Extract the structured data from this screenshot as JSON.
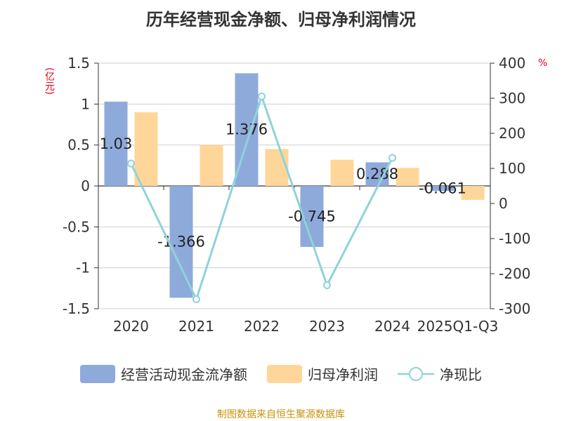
{
  "chart_data": {
    "type": "bar",
    "title": "历年经营现金净额、归母净利润情况",
    "categories": [
      "2020",
      "2021",
      "2022",
      "2023",
      "2024",
      "2025Q1-Q3"
    ],
    "ylabel": "(亿元)",
    "y2label": "%",
    "ylim": [
      -1.5,
      1.5
    ],
    "y2lim": [
      -300,
      400
    ],
    "yticks": [
      "1.5",
      "1",
      "0.5",
      "0",
      "-0.5",
      "-1",
      "-1.5"
    ],
    "y2ticks": [
      "400",
      "300",
      "200",
      "100",
      "0",
      "-100",
      "-200",
      "-300"
    ],
    "series": [
      {
        "name": "经营活动现金流净额",
        "type": "bar",
        "axis": "left",
        "color": "#8eaadb",
        "values": [
          1.03,
          -1.366,
          1.376,
          -0.745,
          0.288,
          -0.061
        ]
      },
      {
        "name": "归母净利润",
        "type": "bar",
        "axis": "left",
        "color": "#ffd699",
        "values": [
          0.9,
          0.5,
          0.45,
          0.32,
          0.22,
          -0.17
        ]
      },
      {
        "name": "净现比",
        "type": "line",
        "axis": "right",
        "color": "#8fd3d9",
        "values": [
          114,
          -273,
          305,
          -233,
          130,
          null
        ]
      }
    ],
    "data_labels": [
      "1.03",
      "-1.366",
      "1.376",
      "-0.745",
      "0.288",
      "-0.061"
    ]
  },
  "legend": {
    "bar1": "经营活动现金流净额",
    "bar2": "归母净利润",
    "line": "净现比"
  },
  "footer": "制图数据来自恒生聚源数据库"
}
